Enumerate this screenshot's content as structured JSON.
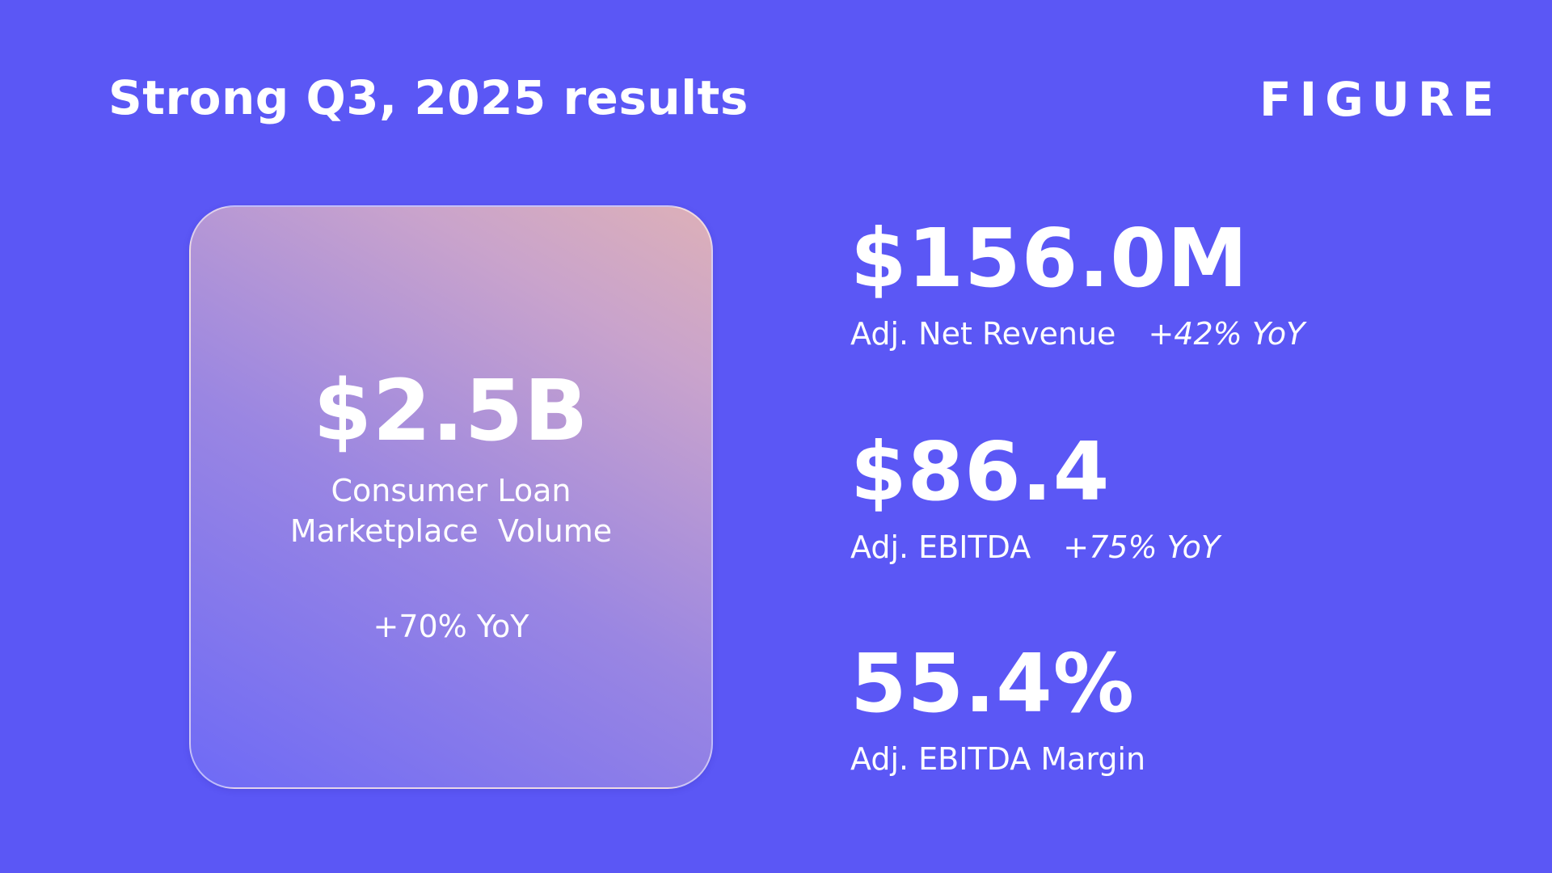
{
  "header": {
    "title": "Strong Q3, 2025 results",
    "logo_text": "FIGURE"
  },
  "card": {
    "value": "$2.5B",
    "label_line1": "Consumer Loan",
    "label_line2": "Marketplace  Volume",
    "change": "+70% YoY"
  },
  "metrics": [
    {
      "value": "$156.0M",
      "label": "Adj. Net Revenue",
      "change": "+42% YoY"
    },
    {
      "value": "$86.4",
      "label": "Adj. EBITDA",
      "change": "+75% YoY"
    },
    {
      "value": "55.4%",
      "label": "Adj. EBITDA Margin"
    }
  ],
  "colors": {
    "background": "#5B57F5",
    "text": "#FFFFFF",
    "card_gradient_start": "#6E6AF6",
    "card_gradient_end": "#DDB0B8"
  }
}
